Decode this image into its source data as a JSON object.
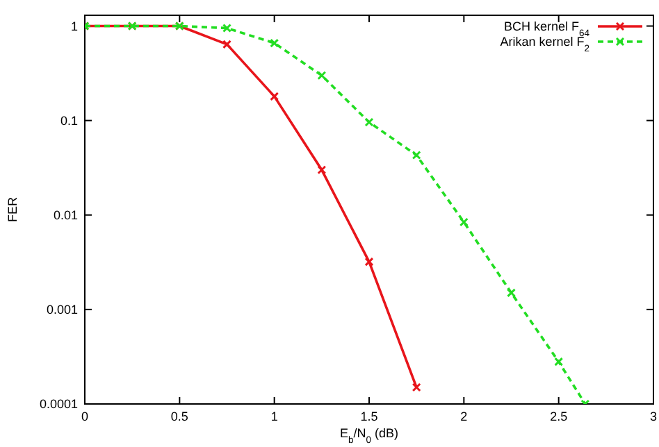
{
  "chart_data": {
    "type": "line",
    "xlabel": "E$_{b}$/N$_{0}$ (dB)",
    "ylabel": "FER",
    "log": "y",
    "xlim": [
      0,
      3
    ],
    "xticks": [
      0,
      0.5,
      1,
      1.5,
      2,
      2.5,
      3
    ],
    "ylim": [
      0.0001,
      1.3
    ],
    "yticks": [
      0.0001,
      0.001,
      0.01,
      0.1,
      1
    ],
    "grid": false,
    "legend": "top right",
    "series": [
      {
        "name": "BCH kernel F$_{64}$",
        "color": "#e8151b",
        "marker": "cross",
        "line_style": "solid",
        "x": [
          0,
          0.25,
          0.5,
          0.75,
          1,
          1.25,
          1.5,
          1.75
        ],
        "values": [
          1,
          1,
          1,
          0.64,
          0.18,
          0.03,
          0.0032,
          0.00015
        ]
      },
      {
        "name": "Arikan kernel F$_{2}$",
        "color": "#22dd22",
        "marker": "cross",
        "line_style": "dashed",
        "x": [
          0,
          0.25,
          0.5,
          0.75,
          1,
          1.25,
          1.5,
          1.75,
          2,
          2.25,
          2.5,
          2.64
        ],
        "values": [
          1,
          1,
          1,
          0.95,
          0.66,
          0.3,
          0.096,
          0.043,
          0.0084,
          0.0015,
          0.00028,
          0.0001
        ]
      }
    ]
  }
}
